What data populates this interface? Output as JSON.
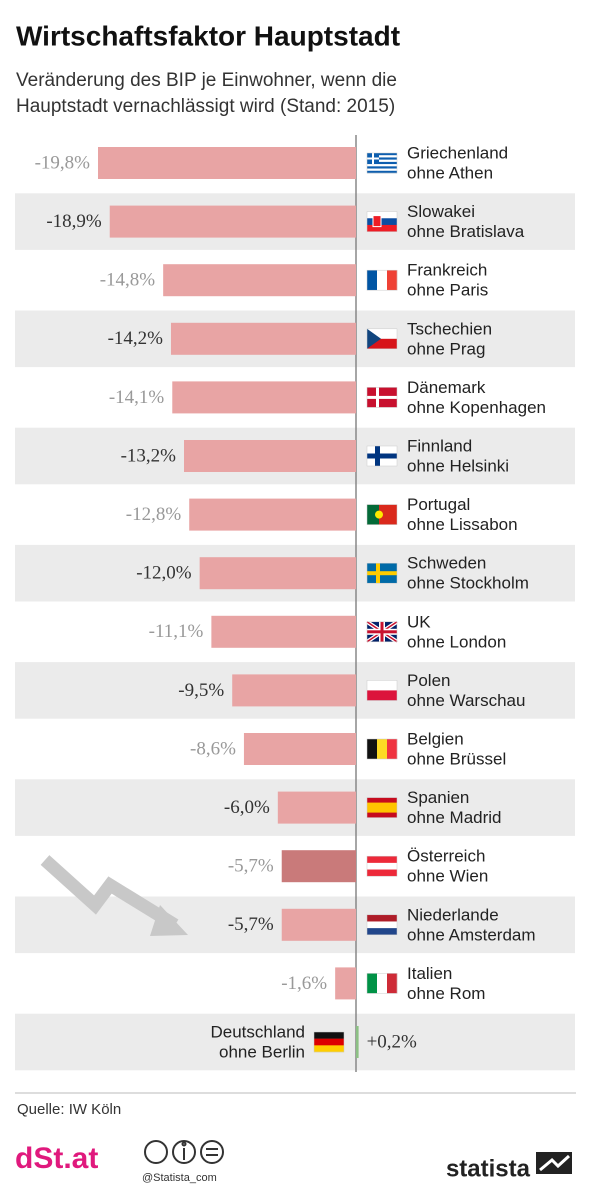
{
  "chart_data": {
    "type": "bar",
    "title": "Wirtschaftsfaktor Hauptstadt",
    "subtitle": [
      "Veränderung des BIP je Einwohner, wenn die",
      "Hauptstadt vernachlässigt wird (Stand: 2015)"
    ],
    "categories": [
      [
        "Griechenland",
        "ohne Athen"
      ],
      [
        "Slowakei",
        "ohne Bratislava"
      ],
      [
        "Frankreich",
        "ohne Paris"
      ],
      [
        "Tschechien",
        "ohne Prag"
      ],
      [
        "Dänemark",
        "ohne Kopenhagen"
      ],
      [
        "Finnland",
        "ohne Helsinki"
      ],
      [
        "Portugal",
        "ohne Lissabon"
      ],
      [
        "Schweden",
        "ohne Stockholm"
      ],
      [
        "UK",
        "ohne London"
      ],
      [
        "Polen",
        "ohne Warschau"
      ],
      [
        "Belgien",
        "ohne Brüssel"
      ],
      [
        "Spanien",
        "ohne Madrid"
      ],
      [
        "Österreich",
        "ohne Wien"
      ],
      [
        "Niederlande",
        "ohne Amsterdam"
      ],
      [
        "Italien",
        "ohne Rom"
      ],
      [
        "Deutschland",
        "ohne Berlin"
      ]
    ],
    "values": [
      -19.8,
      -18.9,
      -14.8,
      -14.2,
      -14.1,
      -13.2,
      -12.8,
      -12.0,
      -11.1,
      -9.5,
      -8.6,
      -6.0,
      -5.7,
      -5.7,
      -1.6,
      0.2
    ],
    "value_labels": [
      "-19,8%",
      "-18,9%",
      "-14,8%",
      "-14,2%",
      "-14,1%",
      "-13,2%",
      "-12,8%",
      "-12,0%",
      "-11,1%",
      "-9,5%",
      "-8,6%",
      "-6,0%",
      "-5,7%",
      "-5,7%",
      "-1,6%",
      "+0,2%"
    ],
    "colors": [
      "#e8a4a4",
      "#e8a4a4",
      "#e8a4a4",
      "#e8a4a4",
      "#e8a4a4",
      "#e8a4a4",
      "#e8a4a4",
      "#e8a4a4",
      "#e8a4a4",
      "#e8a4a4",
      "#e8a4a4",
      "#e8a4a4",
      "#c97a7a",
      "#e8a4a4",
      "#e8a4a4",
      "#8cc084"
    ],
    "source": "Quelle: IW Köln",
    "logo": "dSt.at",
    "handle": "@Statista_com",
    "brand": "statista"
  }
}
